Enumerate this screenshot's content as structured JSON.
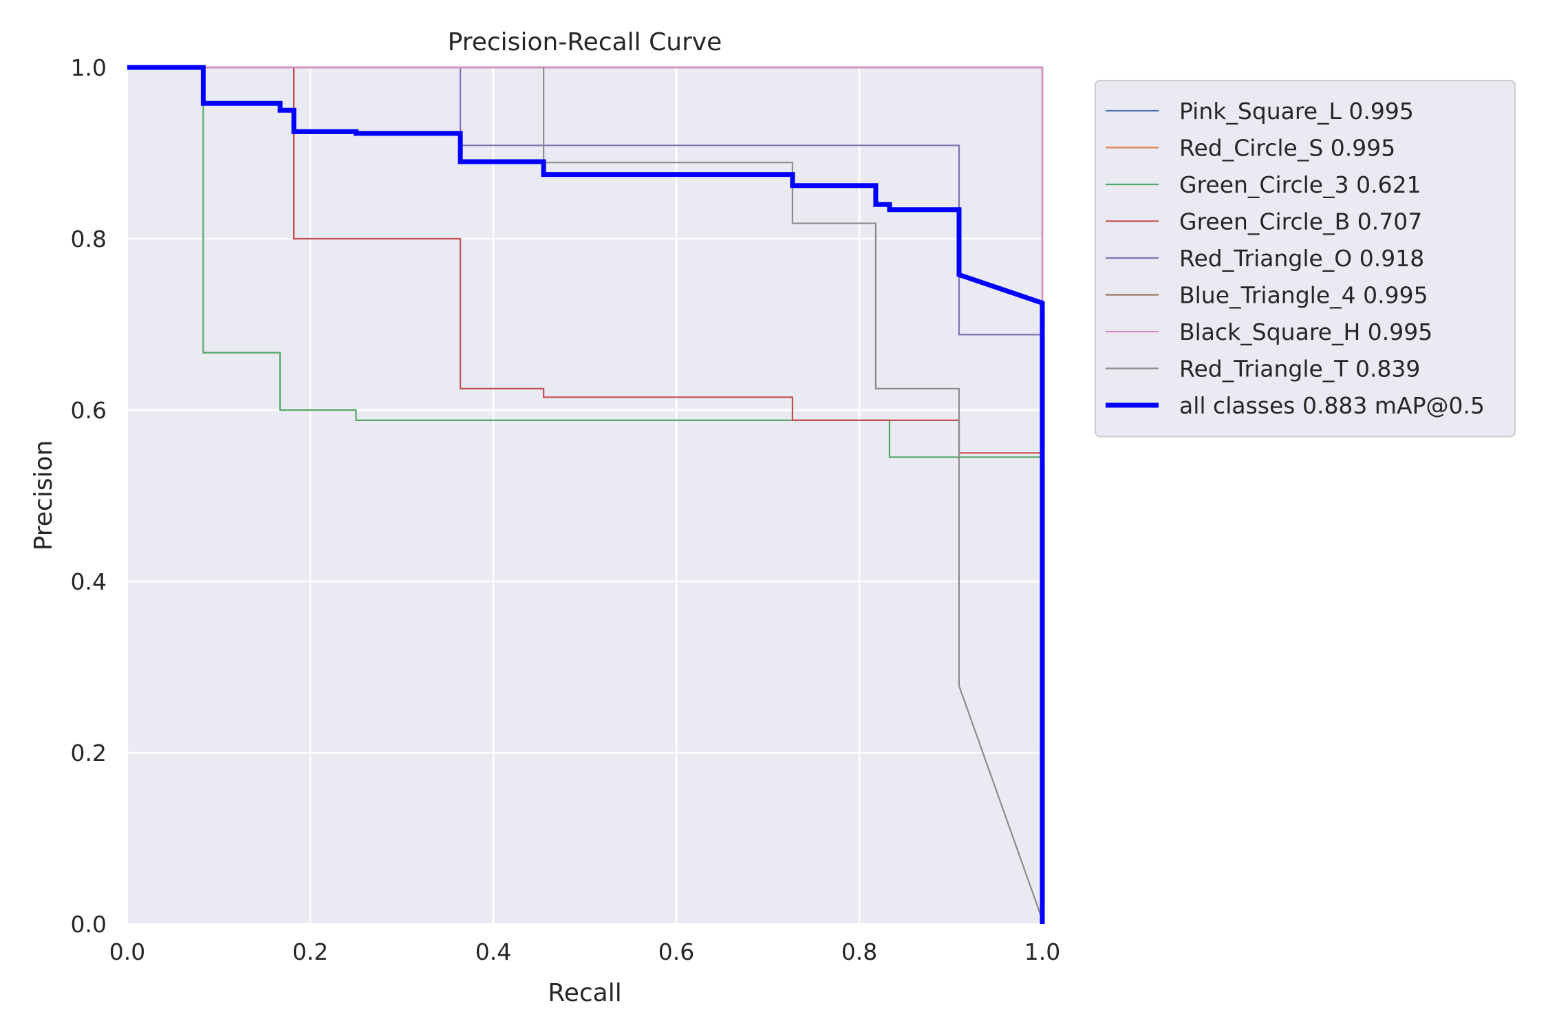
{
  "chart_data": {
    "type": "line",
    "title": "Precision-Recall Curve",
    "xlabel": "Recall",
    "ylabel": "Precision",
    "xlim": [
      0,
      1
    ],
    "ylim": [
      0,
      1
    ],
    "xticks": [
      "0.0",
      "0.2",
      "0.4",
      "0.6",
      "0.8",
      "1.0"
    ],
    "yticks": [
      "0.0",
      "0.2",
      "0.4",
      "0.6",
      "0.8",
      "1.0"
    ],
    "grid": true,
    "legend_position": "outside-right",
    "plot_background": "#EAEAF2",
    "series": [
      {
        "name": "Pink_Square_L 0.995",
        "color": "#4C72B0",
        "line_width": "thin",
        "points": [
          [
            0,
            1
          ],
          [
            1,
            1
          ],
          [
            1,
            0
          ]
        ]
      },
      {
        "name": "Red_Circle_S 0.995",
        "color": "#DD8452",
        "line_width": "thin",
        "points": [
          [
            0,
            1
          ],
          [
            1,
            1
          ],
          [
            1,
            0
          ]
        ]
      },
      {
        "name": "Green_Circle_3 0.621",
        "color": "#55A868",
        "line_width": "thin",
        "points": [
          [
            0,
            1
          ],
          [
            0.083,
            1
          ],
          [
            0.083,
            0.667
          ],
          [
            0.167,
            0.667
          ],
          [
            0.167,
            0.6
          ],
          [
            0.25,
            0.6
          ],
          [
            0.25,
            0.588
          ],
          [
            0.833,
            0.588
          ],
          [
            0.833,
            0.545
          ],
          [
            1,
            0.545
          ],
          [
            1,
            0
          ]
        ]
      },
      {
        "name": "Green_Circle_B 0.707",
        "color": "#C44E52",
        "line_width": "thin",
        "points": [
          [
            0.182,
            1
          ],
          [
            0.182,
            0.8
          ],
          [
            0.364,
            0.8
          ],
          [
            0.364,
            0.625
          ],
          [
            0.455,
            0.625
          ],
          [
            0.455,
            0.615
          ],
          [
            0.727,
            0.615
          ],
          [
            0.727,
            0.588
          ],
          [
            0.909,
            0.588
          ],
          [
            0.909,
            0.55
          ],
          [
            1,
            0.55
          ],
          [
            1,
            0
          ]
        ]
      },
      {
        "name": "Red_Triangle_O 0.918",
        "color": "#8172B3",
        "line_width": "thin",
        "points": [
          [
            0.364,
            1
          ],
          [
            0.364,
            0.909
          ],
          [
            0.909,
            0.909
          ],
          [
            0.909,
            0.688
          ],
          [
            1,
            0.688
          ],
          [
            1,
            0
          ]
        ]
      },
      {
        "name": "Blue_Triangle_4 0.995",
        "color": "#937860",
        "line_width": "thin",
        "points": [
          [
            0,
            1
          ],
          [
            1,
            1
          ],
          [
            1,
            0
          ]
        ]
      },
      {
        "name": "Black_Square_H 0.995",
        "color": "#DA8BC3",
        "line_width": "thin",
        "points": [
          [
            0,
            1
          ],
          [
            1,
            1
          ],
          [
            1,
            0
          ]
        ]
      },
      {
        "name": "Red_Triangle_T 0.839",
        "color": "#8C8C8C",
        "line_width": "thin",
        "points": [
          [
            0.455,
            1
          ],
          [
            0.455,
            0.889
          ],
          [
            0.727,
            0.889
          ],
          [
            0.727,
            0.818
          ],
          [
            0.818,
            0.818
          ],
          [
            0.818,
            0.625
          ],
          [
            0.909,
            0.625
          ],
          [
            0.909,
            0.278
          ],
          [
            1,
            0.005
          ]
        ]
      },
      {
        "name": "all classes 0.883 mAP@0.5",
        "color": "#0000FF",
        "line_width": "thick",
        "points": [
          [
            0,
            1
          ],
          [
            0.083,
            1
          ],
          [
            0.083,
            0.958
          ],
          [
            0.167,
            0.958
          ],
          [
            0.167,
            0.95
          ],
          [
            0.182,
            0.95
          ],
          [
            0.182,
            0.925
          ],
          [
            0.25,
            0.925
          ],
          [
            0.25,
            0.923
          ],
          [
            0.364,
            0.923
          ],
          [
            0.364,
            0.89
          ],
          [
            0.455,
            0.89
          ],
          [
            0.455,
            0.875
          ],
          [
            0.727,
            0.875
          ],
          [
            0.727,
            0.862
          ],
          [
            0.818,
            0.862
          ],
          [
            0.818,
            0.84
          ],
          [
            0.833,
            0.84
          ],
          [
            0.833,
            0.834
          ],
          [
            0.909,
            0.834
          ],
          [
            0.909,
            0.758
          ],
          [
            1,
            0.725
          ],
          [
            1,
            0
          ]
        ]
      }
    ]
  }
}
